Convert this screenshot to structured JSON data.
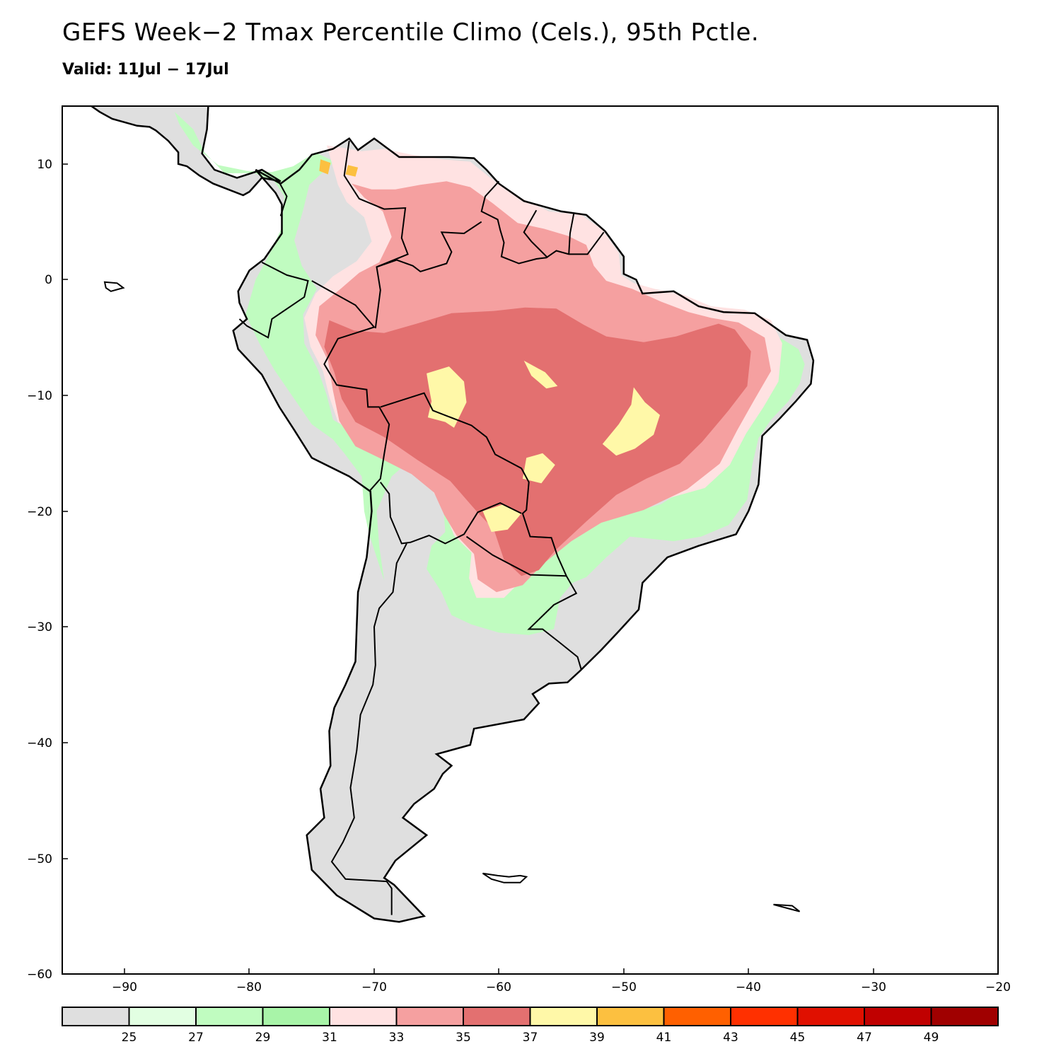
{
  "title": "GEFS Week−2 Tmax Percentile Climo (Cels.), 95th Pctle.",
  "subtitle": "Valid: 11Jul − 17Jul",
  "map": {
    "lon_range": [
      -95,
      -20
    ],
    "lat_range": [
      -60,
      15
    ],
    "lon_ticks": [
      -90,
      -80,
      -70,
      -60,
      -50,
      -40,
      -30,
      -20
    ],
    "lat_ticks": [
      10,
      0,
      -10,
      -20,
      -30,
      -40,
      -50,
      -60
    ],
    "lon_tick_labels": [
      "−90",
      "−80",
      "−70",
      "−60",
      "−50",
      "−40",
      "−30",
      "−20"
    ],
    "lat_tick_labels": [
      "10",
      "0",
      "−10",
      "−20",
      "−30",
      "−40",
      "−50",
      "−60"
    ],
    "land_color": "#dfdfdf",
    "coast_color": "#000000"
  },
  "colorbar": {
    "colors": [
      "#dfdfdf",
      "#e2ffe2",
      "#c0fcc0",
      "#a8f4a8",
      "#ffe2e2",
      "#f5a0a0",
      "#e37070",
      "#fff8a8",
      "#fcc040",
      "#ff6000",
      "#ff3000",
      "#e01000",
      "#c00000",
      "#a00000"
    ],
    "labels": [
      "25",
      "27",
      "29",
      "31",
      "33",
      "35",
      "37",
      "39",
      "41",
      "43",
      "45",
      "47",
      "49"
    ]
  }
}
